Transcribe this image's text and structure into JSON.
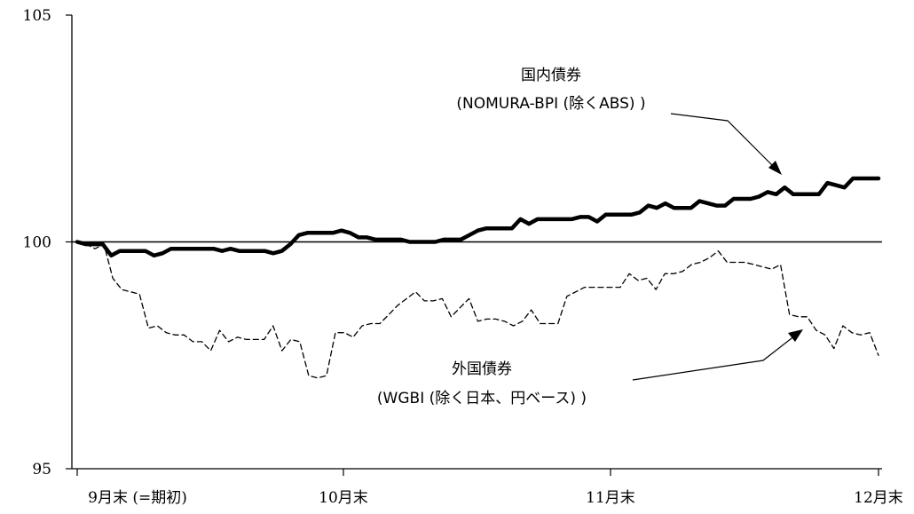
{
  "chart_data": {
    "type": "line",
    "ylim": [
      95,
      105
    ],
    "yticks": [
      "105",
      "100",
      "95"
    ],
    "xticks": [
      "9月末 (=期初)",
      "10月末",
      "11月末",
      "12月末"
    ],
    "xlabel": "",
    "ylabel": "",
    "reference_line": 100,
    "grid": false,
    "series": [
      {
        "name": "国内債券",
        "label_line1": "国内債券",
        "label_line2": "(NOMURA-BPI (除くABS) )",
        "style": "solid-thick",
        "color": "#000000",
        "values": [
          100.0,
          99.95,
          99.95,
          99.95,
          99.7,
          99.8,
          99.8,
          99.8,
          99.8,
          99.7,
          99.75,
          99.85,
          99.85,
          99.85,
          99.85,
          99.85,
          99.85,
          99.8,
          99.85,
          99.8,
          99.8,
          99.8,
          99.8,
          99.75,
          99.8,
          99.95,
          100.15,
          100.2,
          100.2,
          100.2,
          100.2,
          100.25,
          100.2,
          100.1,
          100.1,
          100.05,
          100.05,
          100.05,
          100.05,
          100.0,
          100.0,
          100.0,
          100.0,
          100.05,
          100.05,
          100.05,
          100.15,
          100.25,
          100.3,
          100.3,
          100.3,
          100.3,
          100.5,
          100.4,
          100.5,
          100.5,
          100.5,
          100.5,
          100.5,
          100.55,
          100.55,
          100.45,
          100.6,
          100.6,
          100.6,
          100.6,
          100.65,
          100.8,
          100.75,
          100.85,
          100.75,
          100.75,
          100.75,
          100.9,
          100.85,
          100.8,
          100.8,
          100.95,
          100.95,
          100.95,
          101.0,
          101.1,
          101.05,
          101.2,
          101.05,
          101.05,
          101.05,
          101.05,
          101.3,
          101.25,
          101.2,
          101.4,
          101.4,
          101.4,
          101.4
        ]
      },
      {
        "name": "外国債券",
        "label_line1": "外国債券",
        "label_line2": "(WGBI (除く日本、円ベース) )",
        "style": "dashed",
        "color": "#000000",
        "values": [
          100.0,
          99.95,
          99.85,
          99.95,
          99.2,
          98.95,
          98.9,
          98.85,
          98.1,
          98.15,
          98.0,
          97.95,
          97.95,
          97.8,
          97.8,
          97.6,
          98.05,
          97.8,
          97.9,
          97.85,
          97.85,
          97.85,
          98.15,
          97.6,
          97.85,
          97.8,
          97.05,
          97.0,
          97.05,
          98.0,
          98.0,
          97.9,
          98.15,
          98.2,
          98.2,
          98.4,
          98.6,
          98.75,
          98.9,
          98.7,
          98.7,
          98.75,
          98.35,
          98.55,
          98.75,
          98.25,
          98.3,
          98.3,
          98.25,
          98.15,
          98.25,
          98.5,
          98.2,
          98.2,
          98.2,
          98.8,
          98.9,
          99.0,
          99.0,
          99.0,
          99.0,
          99.0,
          99.3,
          99.15,
          99.2,
          98.95,
          99.3,
          99.3,
          99.35,
          99.5,
          99.55,
          99.65,
          99.8,
          99.55,
          99.55,
          99.55,
          99.5,
          99.45,
          99.4,
          99.5,
          98.4,
          98.35,
          98.35,
          98.05,
          97.95,
          97.65,
          98.15,
          98.0,
          97.95,
          98.0,
          97.5
        ]
      }
    ]
  }
}
